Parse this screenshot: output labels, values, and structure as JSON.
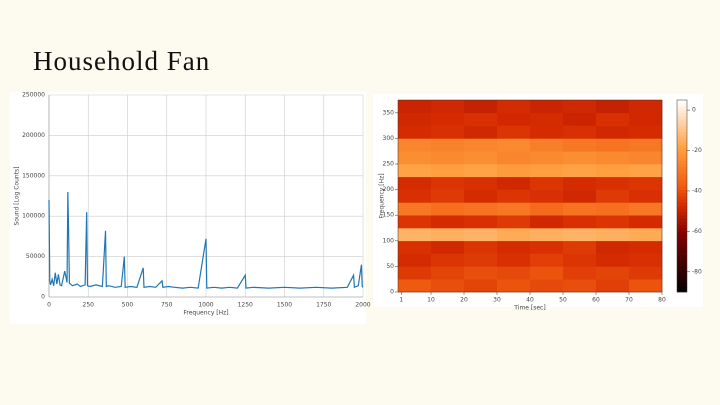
{
  "title": "Household Fan",
  "chart_data": [
    {
      "type": "line",
      "x_label": "Frequency [Hz]",
      "y_label": "Sound [Log Counts]",
      "color": "#1f77b4",
      "grid": true,
      "xlim": [
        0,
        2000
      ],
      "xticks": [
        0,
        250,
        500,
        750,
        1000,
        1250,
        1500,
        1750,
        2000
      ],
      "ylim": [
        0,
        250000
      ],
      "yticks": [
        0,
        50000,
        100000,
        150000,
        200000,
        250000
      ],
      "x": [
        0,
        5,
        10,
        20,
        30,
        40,
        50,
        60,
        70,
        80,
        100,
        115,
        120,
        125,
        130,
        150,
        180,
        200,
        230,
        240,
        245,
        260,
        300,
        340,
        360,
        365,
        380,
        420,
        460,
        480,
        485,
        520,
        560,
        600,
        605,
        640,
        680,
        720,
        725,
        760,
        800,
        850,
        900,
        950,
        1000,
        1005,
        1050,
        1100,
        1150,
        1200,
        1250,
        1255,
        1300,
        1400,
        1500,
        1600,
        1700,
        1800,
        1900,
        1940,
        1945,
        1970,
        1990,
        1995,
        2000
      ],
      "values": [
        120000,
        20000,
        15000,
        22000,
        14000,
        30000,
        16000,
        28000,
        15000,
        14000,
        32000,
        18000,
        130000,
        80000,
        17000,
        14000,
        16000,
        13000,
        15000,
        105000,
        14000,
        13000,
        15000,
        13000,
        82000,
        13000,
        14000,
        12000,
        13000,
        50000,
        12000,
        13000,
        12000,
        36000,
        12000,
        13000,
        12000,
        20000,
        12000,
        13000,
        12000,
        11000,
        12000,
        11000,
        72000,
        11000,
        12000,
        11000,
        12000,
        11000,
        27000,
        11000,
        12000,
        11000,
        12000,
        11000,
        12000,
        11000,
        12000,
        27000,
        12000,
        14000,
        40000,
        13000,
        12000
      ]
    },
    {
      "type": "heatmap",
      "x_label": "Time [sec]",
      "y_label": "Frequency [Hz]",
      "colormap": "hot",
      "xlim": [
        0,
        80
      ],
      "xticks": [
        1,
        10,
        20,
        30,
        40,
        50,
        60,
        70,
        80
      ],
      "ylim": [
        0,
        375
      ],
      "yticks": [
        0,
        50,
        100,
        150,
        200,
        250,
        300,
        350
      ],
      "clim": [
        -90,
        5
      ],
      "cticks": [
        0,
        -20,
        -40,
        -60,
        -80
      ],
      "x": [
        5,
        15,
        25,
        35,
        45,
        55,
        65,
        75
      ],
      "y": [
        12.5,
        37.5,
        62.5,
        87.5,
        112.5,
        137.5,
        162.5,
        187.5,
        212.5,
        237.5,
        262.5,
        287.5,
        312.5,
        337.5,
        362.5
      ],
      "values": [
        [
          -38,
          -40,
          -42,
          -39,
          -41,
          -40,
          -43,
          -39
        ],
        [
          -44,
          -42,
          -40,
          -41,
          -39,
          -43,
          -42,
          -44
        ],
        [
          -47,
          -45,
          -44,
          -46,
          -43,
          -45,
          -47,
          -46
        ],
        [
          -46,
          -48,
          -45,
          -47,
          -46,
          -44,
          -48,
          -47
        ],
        [
          -14,
          -15,
          -14,
          -16,
          -15,
          -14,
          -15,
          -16
        ],
        [
          -45,
          -47,
          -46,
          -44,
          -48,
          -46,
          -45,
          -47
        ],
        [
          -30,
          -32,
          -31,
          -30,
          -33,
          -31,
          -32,
          -30
        ],
        [
          -46,
          -44,
          -47,
          -45,
          -46,
          -48,
          -44,
          -46
        ],
        [
          -47,
          -45,
          -46,
          -48,
          -45,
          -47,
          -46,
          -45
        ],
        [
          -18,
          -19,
          -18,
          -20,
          -19,
          -18,
          -19,
          -18
        ],
        [
          -24,
          -25,
          -24,
          -26,
          -25,
          -24,
          -25,
          -26
        ],
        [
          -26,
          -27,
          -26,
          -25,
          -28,
          -30,
          -31,
          -30
        ],
        [
          -47,
          -46,
          -48,
          -45,
          -47,
          -46,
          -48,
          -47
        ],
        [
          -48,
          -47,
          -46,
          -48,
          -47,
          -49,
          -46,
          -48
        ],
        [
          -49,
          -48,
          -50,
          -47,
          -49,
          -48,
          -50,
          -48
        ]
      ]
    }
  ]
}
